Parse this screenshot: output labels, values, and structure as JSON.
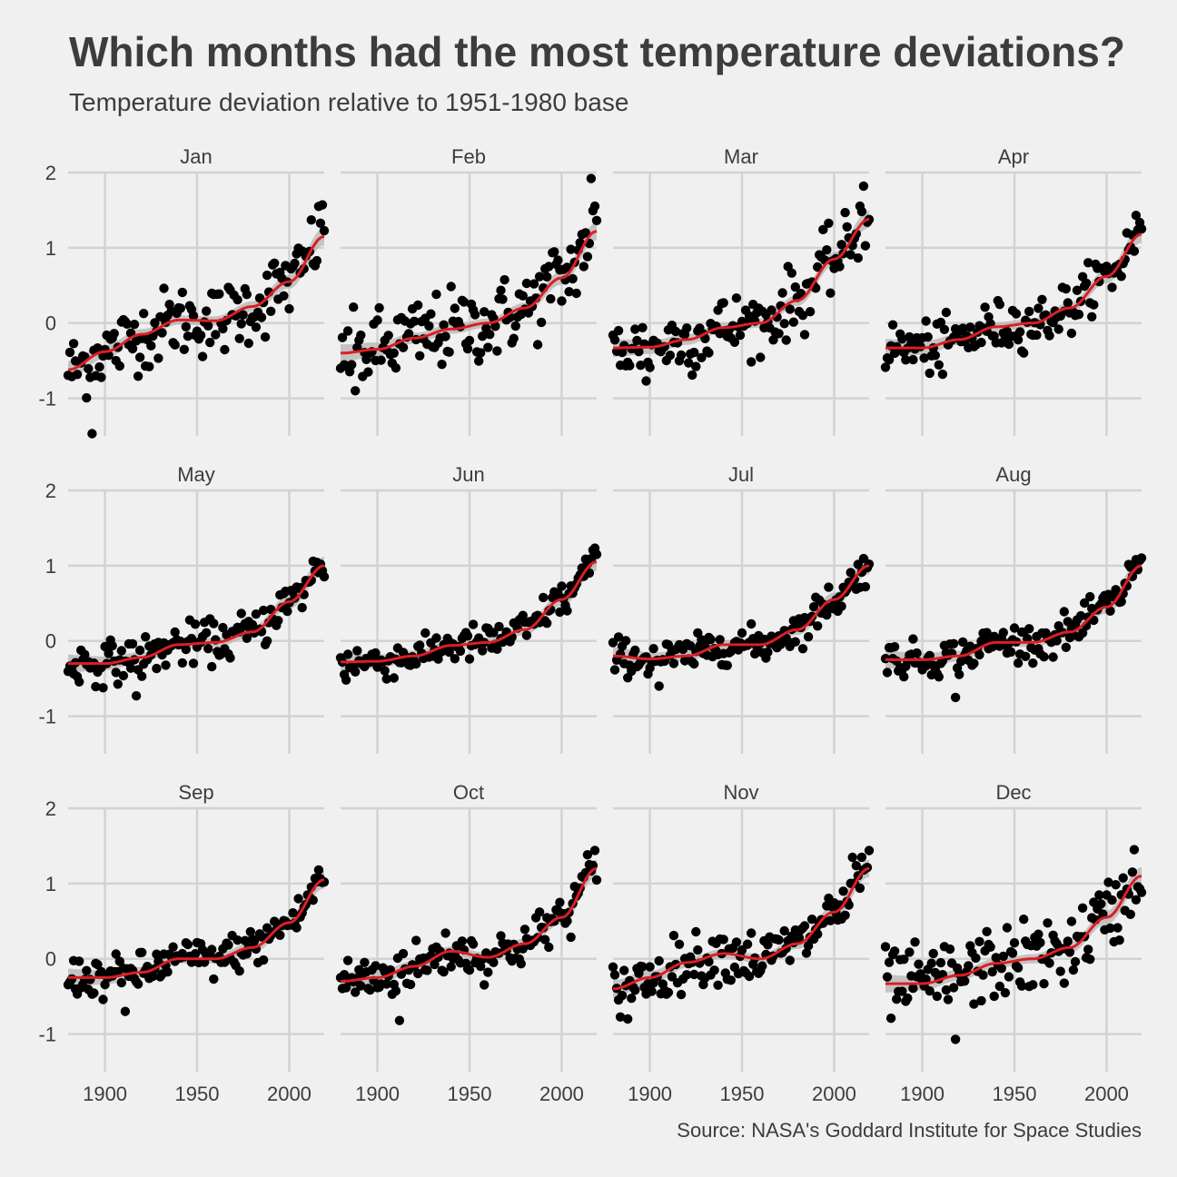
{
  "title": "Which months had the most temperature deviations?",
  "subtitle": "Temperature deviation relative to 1951-1980 base",
  "caption": "Source: NASA's Goddard Institute for Space Studies",
  "colors": {
    "background": "#f0f0f0",
    "grid": "#d2d2d2",
    "points": "#000000",
    "trend": "#dc1e24",
    "ribbon": "#b4b4b4",
    "text": "#3c3c3c"
  },
  "chart_data": {
    "type": "scatter",
    "facet": "month",
    "xlim": [
      1880,
      2019
    ],
    "ylim": [
      -1.5,
      2
    ],
    "x_ticks": [
      1900,
      1950,
      2000
    ],
    "y_ticks": [
      -1,
      0,
      1,
      2
    ],
    "x_tick_labels": [
      "1900",
      "1950",
      "2000"
    ],
    "y_tick_labels": [
      "-1",
      "0",
      "1",
      "2"
    ],
    "grid": true,
    "legend": "none",
    "trend": "loess smooth with confidence band",
    "panels": [
      {
        "label": "Jan",
        "extremes": {
          "max": [
            2016,
            1.55
          ],
          "min": [
            1893,
            -1.47
          ]
        },
        "trend_knots": [
          [
            1880,
            -0.62
          ],
          [
            1900,
            -0.38
          ],
          [
            1920,
            -0.15
          ],
          [
            1940,
            0.04
          ],
          [
            1960,
            0.03
          ],
          [
            1980,
            0.22
          ],
          [
            2000,
            0.55
          ],
          [
            2019,
            1.15
          ]
        ]
      },
      {
        "label": "Feb",
        "extremes": {
          "max": [
            2016,
            1.92
          ],
          "min": [
            1888,
            -0.9
          ]
        },
        "trend_knots": [
          [
            1880,
            -0.4
          ],
          [
            1900,
            -0.35
          ],
          [
            1920,
            -0.2
          ],
          [
            1940,
            -0.08
          ],
          [
            1960,
            0.0
          ],
          [
            1980,
            0.2
          ],
          [
            2000,
            0.6
          ],
          [
            2019,
            1.22
          ]
        ]
      },
      {
        "label": "Mar",
        "extremes": {
          "max": [
            2016,
            1.82
          ],
          "min": [
            1898,
            -0.77
          ]
        },
        "trend_knots": [
          [
            1880,
            -0.33
          ],
          [
            1900,
            -0.32
          ],
          [
            1920,
            -0.22
          ],
          [
            1940,
            -0.06
          ],
          [
            1960,
            0.0
          ],
          [
            1980,
            0.3
          ],
          [
            2000,
            0.85
          ],
          [
            2019,
            1.38
          ]
        ]
      },
      {
        "label": "Apr",
        "extremes": {
          "max": [
            2016,
            1.43
          ],
          "min": [
            1911,
            -0.68
          ]
        },
        "trend_knots": [
          [
            1880,
            -0.33
          ],
          [
            1900,
            -0.33
          ],
          [
            1920,
            -0.22
          ],
          [
            1940,
            -0.05
          ],
          [
            1960,
            0.0
          ],
          [
            1980,
            0.2
          ],
          [
            2000,
            0.62
          ],
          [
            2019,
            1.18
          ]
        ]
      },
      {
        "label": "May",
        "extremes": {
          "max": [
            2017,
            1.02
          ],
          "min": [
            1917,
            -0.73
          ]
        },
        "trend_knots": [
          [
            1880,
            -0.3
          ],
          [
            1900,
            -0.3
          ],
          [
            1920,
            -0.22
          ],
          [
            1940,
            -0.05
          ],
          [
            1960,
            -0.02
          ],
          [
            1980,
            0.12
          ],
          [
            2000,
            0.52
          ],
          [
            2019,
            1.0
          ]
        ]
      },
      {
        "label": "Jun",
        "extremes": {
          "max": [
            2019,
            1.15
          ],
          "min": [
            1883,
            -0.52
          ]
        },
        "trend_knots": [
          [
            1880,
            -0.28
          ],
          [
            1900,
            -0.27
          ],
          [
            1920,
            -0.2
          ],
          [
            1940,
            -0.06
          ],
          [
            1960,
            -0.02
          ],
          [
            1980,
            0.15
          ],
          [
            2000,
            0.55
          ],
          [
            2019,
            1.05
          ]
        ]
      },
      {
        "label": "Jul",
        "extremes": {
          "max": [
            2019,
            1.02
          ],
          "min": [
            1905,
            -0.6
          ]
        },
        "trend_knots": [
          [
            1880,
            -0.2
          ],
          [
            1900,
            -0.24
          ],
          [
            1920,
            -0.2
          ],
          [
            1940,
            -0.05
          ],
          [
            1960,
            -0.05
          ],
          [
            1980,
            0.15
          ],
          [
            2000,
            0.55
          ],
          [
            2019,
            1.0
          ]
        ]
      },
      {
        "label": "Aug",
        "extremes": {
          "max": [
            2016,
            1.08
          ],
          "min": [
            1918,
            -0.75
          ]
        },
        "trend_knots": [
          [
            1880,
            -0.25
          ],
          [
            1900,
            -0.25
          ],
          [
            1920,
            -0.2
          ],
          [
            1940,
            -0.02
          ],
          [
            1960,
            -0.02
          ],
          [
            1980,
            0.12
          ],
          [
            2000,
            0.45
          ],
          [
            2019,
            1.0
          ]
        ]
      },
      {
        "label": "Sep",
        "extremes": {
          "max": [
            2016,
            1.18
          ],
          "min": [
            1911,
            -0.7
          ]
        },
        "trend_knots": [
          [
            1880,
            -0.25
          ],
          [
            1900,
            -0.25
          ],
          [
            1920,
            -0.18
          ],
          [
            1940,
            0.0
          ],
          [
            1960,
            0.0
          ],
          [
            1980,
            0.15
          ],
          [
            2000,
            0.48
          ],
          [
            2019,
            1.05
          ]
        ]
      },
      {
        "label": "Oct",
        "extremes": {
          "max": [
            2015,
            1.25
          ],
          "min": [
            1912,
            -0.82
          ]
        },
        "trend_knots": [
          [
            1880,
            -0.3
          ],
          [
            1900,
            -0.25
          ],
          [
            1920,
            -0.1
          ],
          [
            1940,
            0.1
          ],
          [
            1960,
            0.02
          ],
          [
            1980,
            0.2
          ],
          [
            2000,
            0.55
          ],
          [
            2019,
            1.2
          ]
        ]
      },
      {
        "label": "Nov",
        "extremes": {
          "max": [
            2015,
            1.35
          ],
          "min": [
            1888,
            -0.8
          ]
        },
        "trend_knots": [
          [
            1880,
            -0.4
          ],
          [
            1900,
            -0.25
          ],
          [
            1920,
            -0.05
          ],
          [
            1940,
            0.07
          ],
          [
            1960,
            0.0
          ],
          [
            1980,
            0.2
          ],
          [
            2000,
            0.62
          ],
          [
            2019,
            1.2
          ]
        ]
      },
      {
        "label": "Dec",
        "extremes": {
          "max": [
            2015,
            1.45
          ],
          "min": [
            1918,
            -1.07
          ]
        },
        "trend_knots": [
          [
            1880,
            -0.33
          ],
          [
            1900,
            -0.33
          ],
          [
            1920,
            -0.22
          ],
          [
            1940,
            -0.06
          ],
          [
            1960,
            0.0
          ],
          [
            1980,
            0.15
          ],
          [
            2000,
            0.55
          ],
          [
            2019,
            1.1
          ]
        ]
      }
    ]
  }
}
